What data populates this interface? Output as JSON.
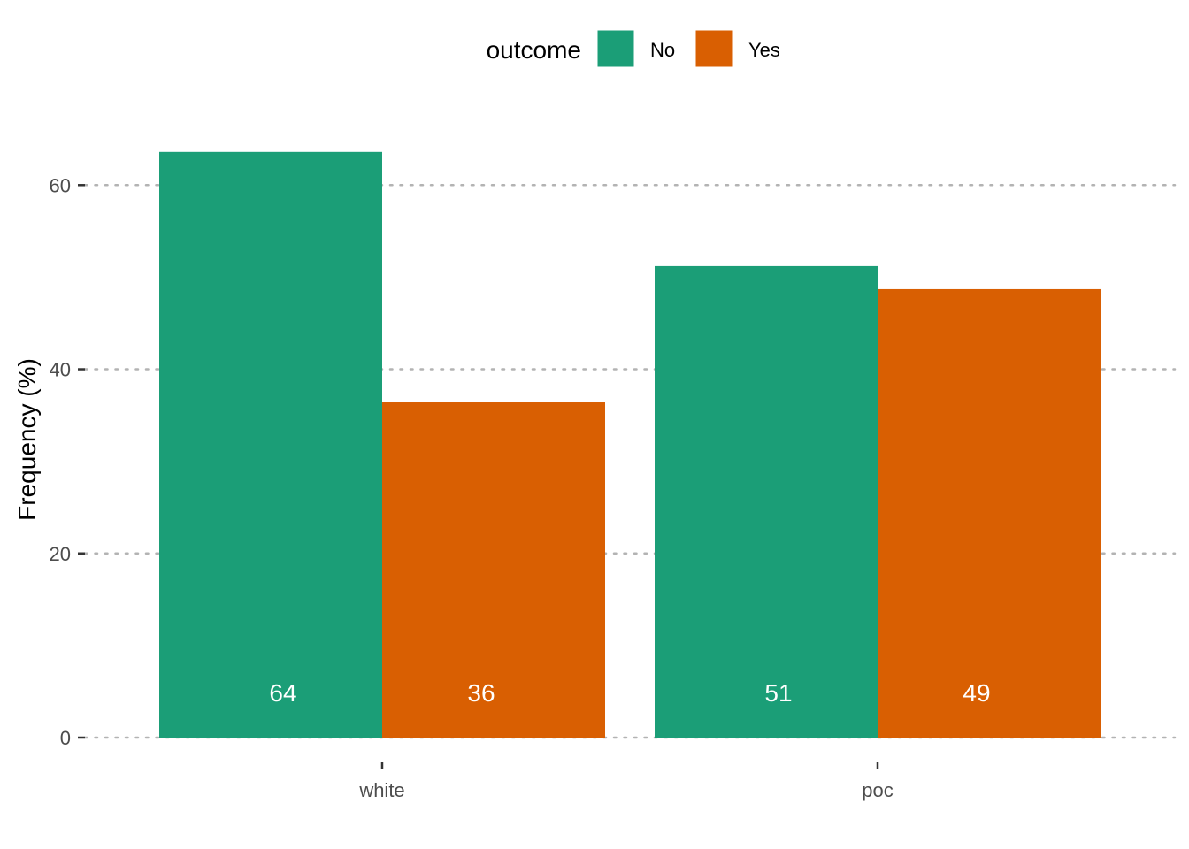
{
  "chart_data": {
    "type": "bar",
    "title": "",
    "xlabel": "",
    "ylabel": "Frequency (%)",
    "categories": [
      "white",
      "poc"
    ],
    "series": [
      {
        "name": "No",
        "values": [
          63.6,
          51.2
        ],
        "labels": [
          "64",
          "51"
        ],
        "color": "#1B9E77"
      },
      {
        "name": "Yes",
        "values": [
          36.4,
          48.7
        ],
        "labels": [
          "36",
          "49"
        ],
        "color": "#D95F02"
      }
    ],
    "ylim": [
      0,
      68
    ],
    "yticks": [
      0,
      20,
      40,
      60
    ],
    "grid": "horizontal-dotted",
    "legend": {
      "title": "outcome",
      "position": "top"
    }
  }
}
